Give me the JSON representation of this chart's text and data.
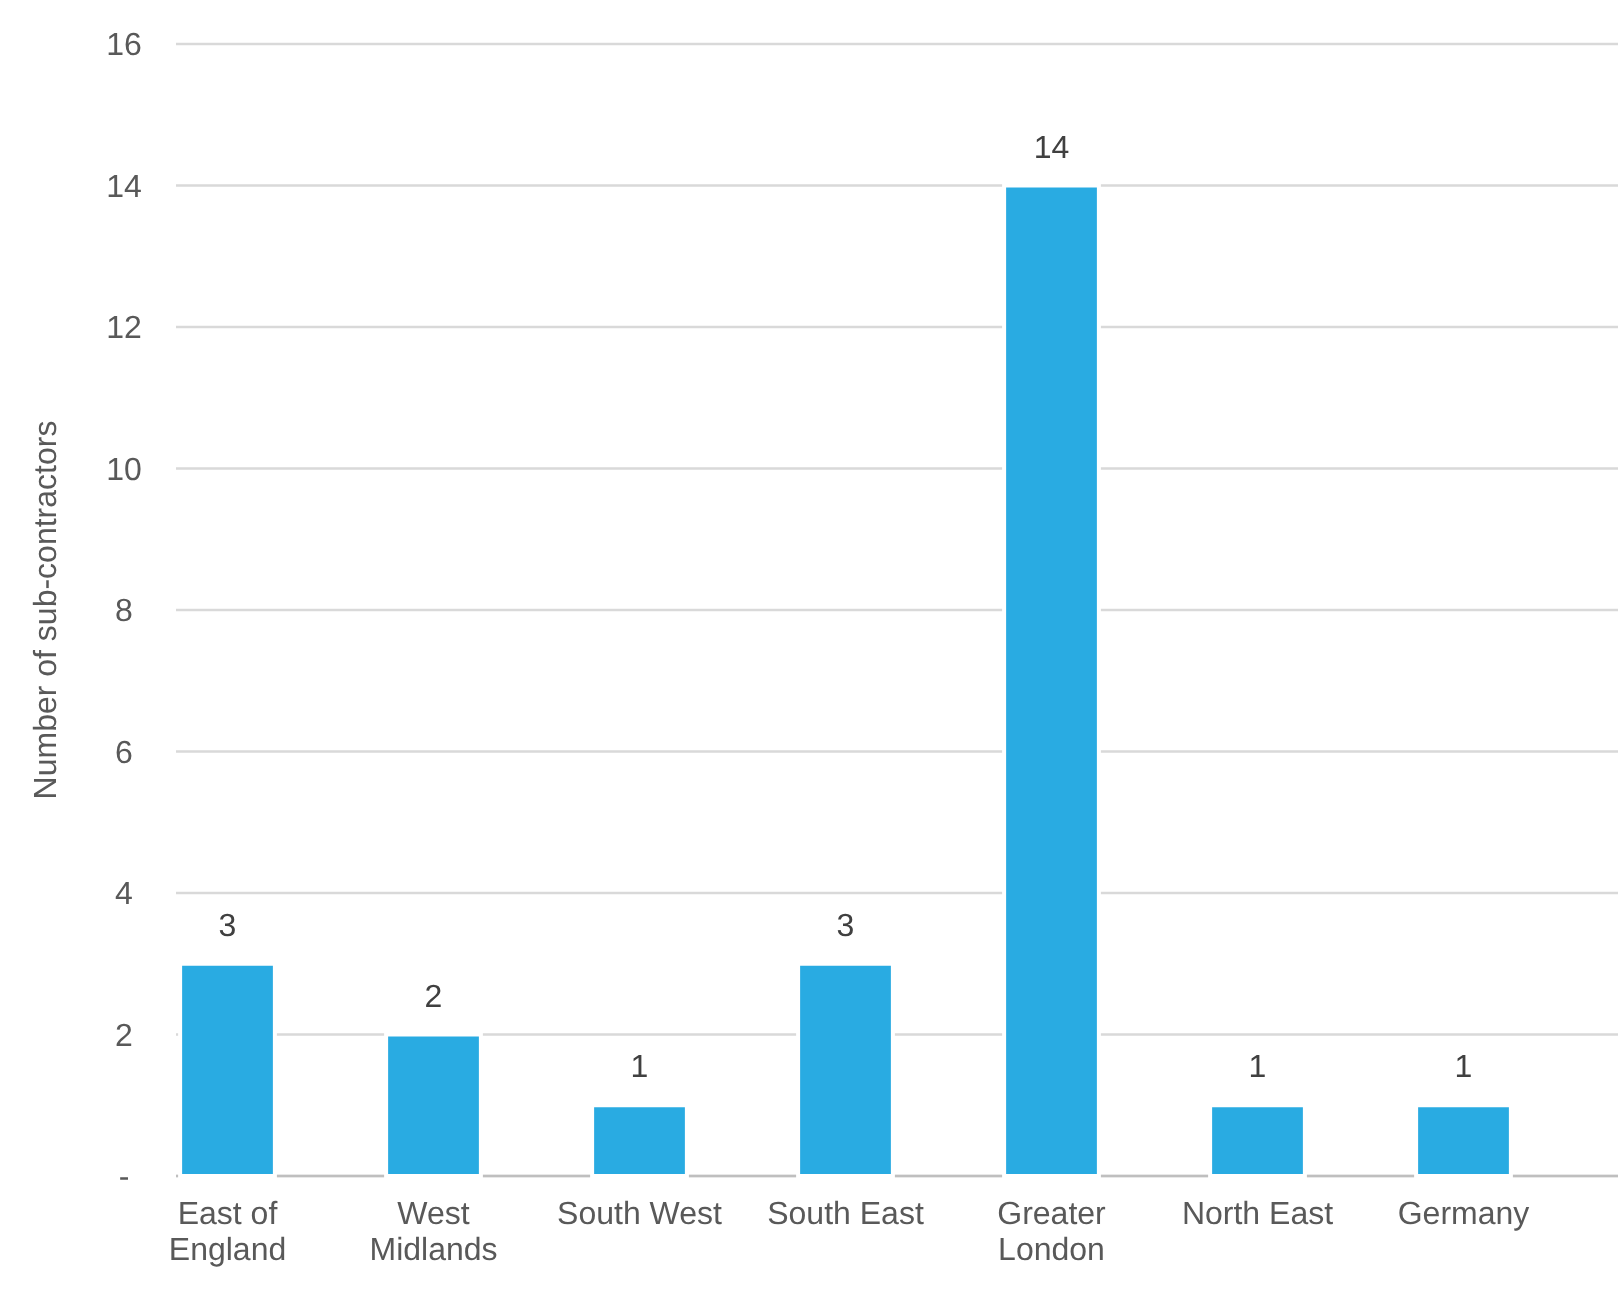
{
  "chart_data": {
    "type": "bar",
    "ylabel": "Number of sub-contractors",
    "categories": [
      "East of England",
      "West Midlands",
      "South West",
      "South East",
      "Greater London",
      "North East",
      "Germany"
    ],
    "values": [
      3,
      2,
      1,
      3,
      14,
      1,
      1
    ],
    "color": "#29abe2",
    "ylim": [
      0,
      16
    ],
    "yticks": [
      {
        "value": 0,
        "label": "-"
      },
      2,
      4,
      6,
      8,
      10,
      12,
      14,
      16
    ],
    "grid": "y",
    "data_labels": true
  }
}
